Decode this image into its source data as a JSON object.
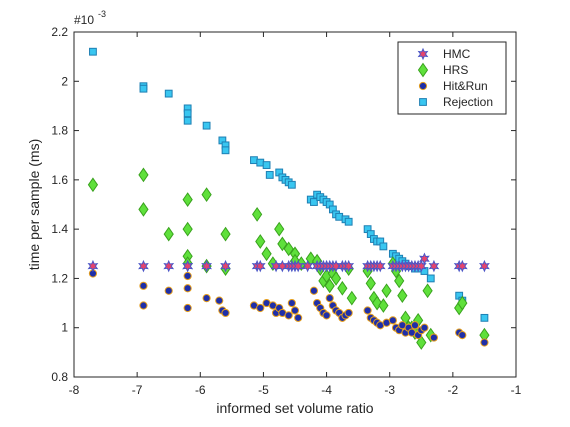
{
  "chart_data": {
    "type": "scatter",
    "xlabel": "informed set volume ratio",
    "ylabel": "time per sample (ms)",
    "y_exponent_label": "#10",
    "y_exponent_power": "-3",
    "xlim": [
      -8,
      -1
    ],
    "ylim": [
      0.8,
      2.2
    ],
    "x_ticks": [
      -8,
      -7,
      -6,
      -5,
      -4,
      -3,
      -2,
      -1
    ],
    "y_ticks": [
      0.8,
      1,
      1.2,
      1.4,
      1.6,
      1.8,
      2,
      2.2
    ],
    "grid": false,
    "legend_placement": "top-right",
    "series": [
      {
        "name": "HMC",
        "marker": "hexagram",
        "color": "#e8446b",
        "edge": "#4b56c7",
        "points": [
          [
            -7.7,
            1.25
          ],
          [
            -6.9,
            1.25
          ],
          [
            -6.5,
            1.25
          ],
          [
            -6.2,
            1.25
          ],
          [
            -6.2,
            1.25
          ],
          [
            -5.9,
            1.25
          ],
          [
            -5.6,
            1.25
          ],
          [
            -5.1,
            1.25
          ],
          [
            -5.05,
            1.25
          ],
          [
            -4.8,
            1.25
          ],
          [
            -4.7,
            1.25
          ],
          [
            -4.6,
            1.25
          ],
          [
            -4.55,
            1.25
          ],
          [
            -4.5,
            1.25
          ],
          [
            -4.45,
            1.25
          ],
          [
            -4.3,
            1.25
          ],
          [
            -4.15,
            1.25
          ],
          [
            -4.1,
            1.25
          ],
          [
            -4.05,
            1.25
          ],
          [
            -4.0,
            1.25
          ],
          [
            -3.95,
            1.25
          ],
          [
            -3.9,
            1.25
          ],
          [
            -3.85,
            1.25
          ],
          [
            -3.75,
            1.25
          ],
          [
            -3.7,
            1.25
          ],
          [
            -3.65,
            1.25
          ],
          [
            -3.35,
            1.25
          ],
          [
            -3.3,
            1.25
          ],
          [
            -3.25,
            1.25
          ],
          [
            -3.2,
            1.25
          ],
          [
            -3.15,
            1.25
          ],
          [
            -2.95,
            1.25
          ],
          [
            -2.9,
            1.25
          ],
          [
            -2.85,
            1.25
          ],
          [
            -2.8,
            1.25
          ],
          [
            -2.75,
            1.25
          ],
          [
            -2.7,
            1.25
          ],
          [
            -2.65,
            1.25
          ],
          [
            -2.6,
            1.25
          ],
          [
            -2.55,
            1.25
          ],
          [
            -2.5,
            1.25
          ],
          [
            -2.45,
            1.28
          ],
          [
            -2.3,
            1.25
          ],
          [
            -1.9,
            1.25
          ],
          [
            -1.85,
            1.25
          ],
          [
            -1.5,
            1.25
          ]
        ]
      },
      {
        "name": "HRS",
        "marker": "diamond",
        "color": "#5fe03b",
        "edge": "#3aa21e",
        "points": [
          [
            -7.7,
            1.58
          ],
          [
            -6.9,
            1.62
          ],
          [
            -6.9,
            1.48
          ],
          [
            -6.5,
            1.38
          ],
          [
            -6.2,
            1.52
          ],
          [
            -6.2,
            1.4
          ],
          [
            -6.2,
            1.29
          ],
          [
            -6.2,
            1.26
          ],
          [
            -5.9,
            1.54
          ],
          [
            -5.9,
            1.25
          ],
          [
            -5.6,
            1.38
          ],
          [
            -5.6,
            1.24
          ],
          [
            -5.1,
            1.46
          ],
          [
            -5.05,
            1.35
          ],
          [
            -4.95,
            1.3
          ],
          [
            -4.85,
            1.26
          ],
          [
            -4.75,
            1.4
          ],
          [
            -4.7,
            1.34
          ],
          [
            -4.6,
            1.32
          ],
          [
            -4.5,
            1.3
          ],
          [
            -4.5,
            1.27
          ],
          [
            -4.4,
            1.26
          ],
          [
            -4.25,
            1.28
          ],
          [
            -4.15,
            1.27
          ],
          [
            -4.1,
            1.24
          ],
          [
            -4.05,
            1.19
          ],
          [
            -4.0,
            1.21
          ],
          [
            -3.95,
            1.17
          ],
          [
            -3.9,
            1.22
          ],
          [
            -3.85,
            1.2
          ],
          [
            -3.75,
            1.16
          ],
          [
            -3.65,
            1.24
          ],
          [
            -3.6,
            1.12
          ],
          [
            -3.35,
            1.23
          ],
          [
            -3.3,
            1.18
          ],
          [
            -3.25,
            1.12
          ],
          [
            -3.2,
            1.1
          ],
          [
            -3.1,
            1.09
          ],
          [
            -3.05,
            1.15
          ],
          [
            -2.95,
            1.26
          ],
          [
            -2.9,
            1.23
          ],
          [
            -2.85,
            1.19
          ],
          [
            -2.8,
            1.13
          ],
          [
            -2.75,
            1.04
          ],
          [
            -2.7,
            1.0
          ],
          [
            -2.65,
            1.0
          ],
          [
            -2.6,
            0.98
          ],
          [
            -2.55,
            1.03
          ],
          [
            -2.5,
            0.94
          ],
          [
            -2.4,
            1.15
          ],
          [
            -2.35,
            0.97
          ],
          [
            -1.9,
            1.08
          ],
          [
            -1.85,
            1.1
          ],
          [
            -1.5,
            0.97
          ]
        ]
      },
      {
        "name": "Hit&Run",
        "marker": "circle",
        "color": "#1f2fa8",
        "edge": "#e59e1c",
        "points": [
          [
            -7.7,
            1.22
          ],
          [
            -6.9,
            1.17
          ],
          [
            -6.9,
            1.09
          ],
          [
            -6.5,
            1.15
          ],
          [
            -6.2,
            1.21
          ],
          [
            -6.2,
            1.16
          ],
          [
            -6.2,
            1.08
          ],
          [
            -5.9,
            1.12
          ],
          [
            -5.7,
            1.11
          ],
          [
            -5.65,
            1.07
          ],
          [
            -5.6,
            1.06
          ],
          [
            -5.15,
            1.09
          ],
          [
            -5.05,
            1.08
          ],
          [
            -4.95,
            1.1
          ],
          [
            -4.85,
            1.09
          ],
          [
            -4.8,
            1.06
          ],
          [
            -4.75,
            1.08
          ],
          [
            -4.7,
            1.06
          ],
          [
            -4.6,
            1.05
          ],
          [
            -4.55,
            1.1
          ],
          [
            -4.5,
            1.07
          ],
          [
            -4.45,
            1.04
          ],
          [
            -4.2,
            1.15
          ],
          [
            -4.15,
            1.1
          ],
          [
            -4.1,
            1.08
          ],
          [
            -4.05,
            1.06
          ],
          [
            -4.0,
            1.05
          ],
          [
            -3.95,
            1.12
          ],
          [
            -3.9,
            1.09
          ],
          [
            -3.85,
            1.07
          ],
          [
            -3.8,
            1.06
          ],
          [
            -3.75,
            1.04
          ],
          [
            -3.7,
            1.05
          ],
          [
            -3.65,
            1.06
          ],
          [
            -3.35,
            1.07
          ],
          [
            -3.3,
            1.04
          ],
          [
            -3.25,
            1.03
          ],
          [
            -3.2,
            1.02
          ],
          [
            -3.15,
            1.01
          ],
          [
            -3.05,
            1.02
          ],
          [
            -2.95,
            1.03
          ],
          [
            -2.9,
            1.0
          ],
          [
            -2.85,
            0.99
          ],
          [
            -2.8,
            1.01
          ],
          [
            -2.75,
            0.98
          ],
          [
            -2.7,
            1.0
          ],
          [
            -2.65,
            0.98
          ],
          [
            -2.6,
            1.01
          ],
          [
            -2.55,
            0.97
          ],
          [
            -2.5,
            0.99
          ],
          [
            -2.45,
            1.0
          ],
          [
            -2.3,
            0.96
          ],
          [
            -1.9,
            0.98
          ],
          [
            -1.85,
            0.97
          ],
          [
            -1.5,
            0.94
          ]
        ]
      },
      {
        "name": "Rejection",
        "marker": "square",
        "color": "#39c6f0",
        "edge": "#1e7fb3",
        "points": [
          [
            -7.7,
            2.12
          ],
          [
            -6.9,
            1.98
          ],
          [
            -6.9,
            1.97
          ],
          [
            -6.5,
            1.95
          ],
          [
            -6.2,
            1.89
          ],
          [
            -6.2,
            1.87
          ],
          [
            -6.2,
            1.84
          ],
          [
            -5.9,
            1.82
          ],
          [
            -5.65,
            1.76
          ],
          [
            -5.6,
            1.74
          ],
          [
            -5.6,
            1.72
          ],
          [
            -5.15,
            1.68
          ],
          [
            -5.05,
            1.67
          ],
          [
            -4.95,
            1.66
          ],
          [
            -4.9,
            1.62
          ],
          [
            -4.75,
            1.63
          ],
          [
            -4.7,
            1.61
          ],
          [
            -4.65,
            1.6
          ],
          [
            -4.6,
            1.59
          ],
          [
            -4.55,
            1.58
          ],
          [
            -4.25,
            1.52
          ],
          [
            -4.2,
            1.51
          ],
          [
            -4.15,
            1.54
          ],
          [
            -4.1,
            1.53
          ],
          [
            -4.05,
            1.52
          ],
          [
            -4.0,
            1.51
          ],
          [
            -3.95,
            1.5
          ],
          [
            -3.9,
            1.48
          ],
          [
            -3.85,
            1.46
          ],
          [
            -3.8,
            1.45
          ],
          [
            -3.7,
            1.44
          ],
          [
            -3.65,
            1.43
          ],
          [
            -3.35,
            1.4
          ],
          [
            -3.3,
            1.38
          ],
          [
            -3.25,
            1.36
          ],
          [
            -3.2,
            1.35
          ],
          [
            -3.15,
            1.35
          ],
          [
            -3.1,
            1.33
          ],
          [
            -2.95,
            1.3
          ],
          [
            -2.9,
            1.29
          ],
          [
            -2.85,
            1.28
          ],
          [
            -2.8,
            1.27
          ],
          [
            -2.75,
            1.26
          ],
          [
            -2.7,
            1.25
          ],
          [
            -2.6,
            1.24
          ],
          [
            -2.55,
            1.24
          ],
          [
            -2.45,
            1.23
          ],
          [
            -2.35,
            1.2
          ],
          [
            -1.9,
            1.13
          ],
          [
            -1.85,
            1.11
          ],
          [
            -1.5,
            1.04
          ]
        ]
      }
    ]
  }
}
